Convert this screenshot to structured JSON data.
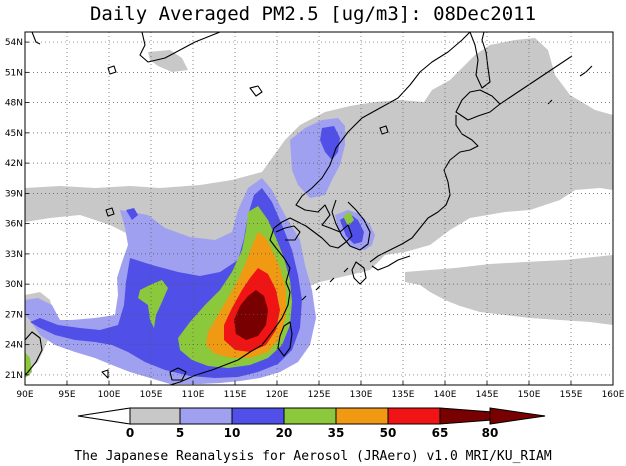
{
  "title": "Daily Averaged PM2.5 [ug/m3]: 08Dec2011",
  "credit": "The Japanese Reanalysis for Aerosol (JRAero) v1.0 MRI/KU_RIAM",
  "lon_labels": [
    "90E",
    "95E",
    "100E",
    "105E",
    "110E",
    "115E",
    "120E",
    "125E",
    "130E",
    "135E",
    "140E",
    "145E",
    "150E",
    "155E",
    "160E"
  ],
  "lat_labels": [
    "21N",
    "24N",
    "27N",
    "30N",
    "33N",
    "36N",
    "39N",
    "42N",
    "45N",
    "48N",
    "51N",
    "54N"
  ],
  "colorbar": {
    "levels": [
      "0",
      "5",
      "10",
      "20",
      "35",
      "50",
      "65",
      "80"
    ],
    "colors": [
      "#ffffff",
      "#c8c8c8",
      "#a0a0f0",
      "#5050e8",
      "#8cc83c",
      "#f09a14",
      "#f01414",
      "#780000"
    ]
  },
  "map_colors": {
    "gray": "#c8c8c8",
    "lightblue": "#a0a0f0",
    "blue": "#5050e8",
    "green": "#8cc83c",
    "orange": "#f09a14",
    "red": "#f01414",
    "darkred": "#780000"
  }
}
